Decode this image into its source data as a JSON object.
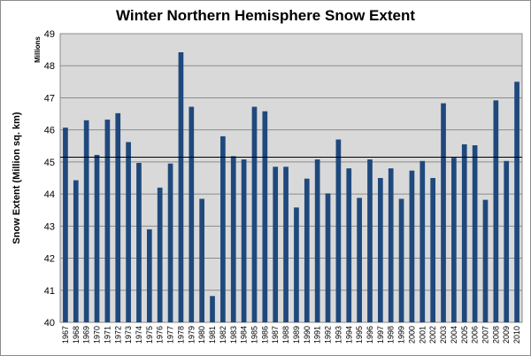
{
  "chart_data": {
    "type": "bar",
    "title": "Winter Northern Hemisphere Snow Extent",
    "xlabel": "",
    "ylabel": "Snow Extent (Million sq. km)",
    "yunit": "Millions",
    "ylim": [
      40,
      49
    ],
    "yticks": [
      40,
      41,
      42,
      43,
      44,
      45,
      46,
      47,
      48,
      49
    ],
    "grid": true,
    "bar_color": "#1f497d",
    "mean_line_color": "#000000",
    "mean_value": 45.15,
    "categories": [
      "1967",
      "1968",
      "1969",
      "1970",
      "1971",
      "1972",
      "1973",
      "1974",
      "1975",
      "1976",
      "1977",
      "1978",
      "1979",
      "1980",
      "1981",
      "1982",
      "1983",
      "1984",
      "1985",
      "1986",
      "1987",
      "1988",
      "1989",
      "1990",
      "1991",
      "1992",
      "1993",
      "1994",
      "1995",
      "1996",
      "1997",
      "1998",
      "1999",
      "2000",
      "2001",
      "2002",
      "2003",
      "2004",
      "2005",
      "2006",
      "2007",
      "2008",
      "2009",
      "2010"
    ],
    "values": [
      46.07,
      44.43,
      46.3,
      45.22,
      46.32,
      46.52,
      45.62,
      44.97,
      42.9,
      44.2,
      44.95,
      48.42,
      46.72,
      43.85,
      40.82,
      45.8,
      45.18,
      45.08,
      46.72,
      46.58,
      44.85,
      44.85,
      43.58,
      44.48,
      45.08,
      44.02,
      45.7,
      44.8,
      43.88,
      45.08,
      44.5,
      44.8,
      43.85,
      44.73,
      45.03,
      44.5,
      46.83,
      45.13,
      45.55,
      45.52,
      43.82,
      46.92,
      45.03,
      47.5
    ]
  }
}
